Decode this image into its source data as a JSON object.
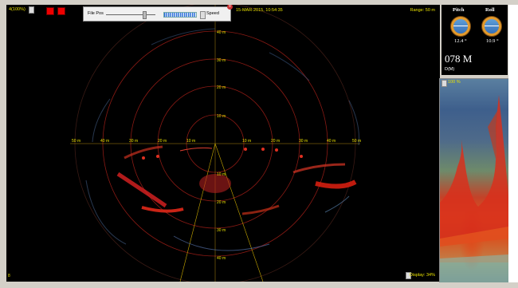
{
  "header": {
    "gain_label": "4(100%)",
    "datetime": "15-MAR-2015, 10:54:35",
    "range": "Range: 50 m"
  },
  "file_pos": {
    "label": "File Pos",
    "speed_label": "Speed",
    "close_glyph": "x"
  },
  "footer": {
    "display": "Display: 34%",
    "corner": "8"
  },
  "radar": {
    "range_labels": [
      "10 m",
      "20 m",
      "30 m",
      "40 m"
    ],
    "left_labels": [
      "50 m",
      "40 m",
      "30 m",
      "20 m",
      "10 m"
    ],
    "right_labels": [
      "10 m",
      "20 m",
      "30 m",
      "40 m",
      "50 m"
    ]
  },
  "attitude": {
    "pitch_label": "Pitch",
    "roll_label": "Roll",
    "pitch_value": "12.4 °",
    "roll_value": "10.9 °",
    "depth": "078 M",
    "depth_label": "D(M)"
  },
  "echogram": {
    "percent": "100 %"
  },
  "colors": {
    "range_rings": "#8a1a14",
    "labels": "#e8e000",
    "grid": "#c8a800"
  }
}
